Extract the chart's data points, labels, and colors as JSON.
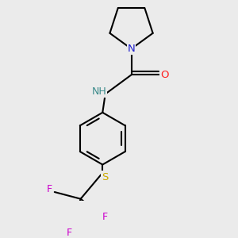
{
  "background_color": "#ebebeb",
  "atom_colors": {
    "C": "#000000",
    "N": "#2020cc",
    "NH": "#3a8a8a",
    "O": "#ff2020",
    "S": "#ccaa00",
    "F": "#cc00cc"
  },
  "bond_color": "#000000",
  "bond_width": 1.5,
  "figsize": [
    3.0,
    3.0
  ],
  "dpi": 100,
  "xlim": [
    -1.2,
    1.2
  ],
  "ylim": [
    -1.5,
    1.4
  ]
}
